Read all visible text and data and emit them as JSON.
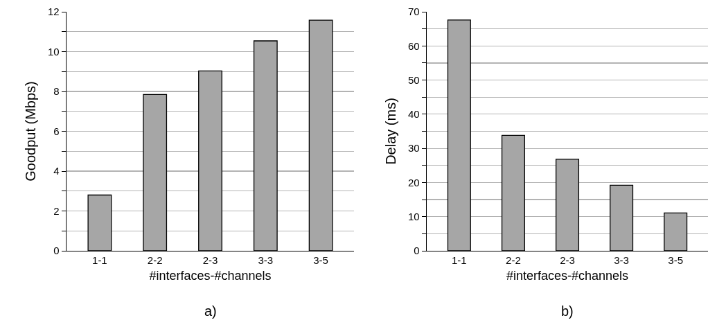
{
  "chart_data": [
    {
      "type": "bar",
      "categories": [
        "1-1",
        "2-2",
        "2-3",
        "3-3",
        "3-5"
      ],
      "values": [
        2.8,
        7.85,
        9.03,
        10.54,
        11.58
      ],
      "color": "#a6a6a6",
      "xlabel": "#interfaces-#channels",
      "ylabel": "Goodput (Mbps)",
      "ylim": [
        0,
        12
      ],
      "yticks": [
        0,
        {
          "value": 1,
          "label": null
        },
        2,
        {
          "value": 3,
          "label": null
        },
        4,
        {
          "value": 5,
          "label": null
        },
        6,
        {
          "value": 7,
          "label": null
        },
        8,
        {
          "value": 9,
          "label": null
        },
        10,
        {
          "value": 11,
          "label": null
        },
        12
      ],
      "grid": "y",
      "annotations": [
        "a)"
      ]
    },
    {
      "type": "bar",
      "categories": [
        "1-1",
        "2-2",
        "2-3",
        "3-3",
        "3-5"
      ],
      "values": [
        67.6,
        33.8,
        26.8,
        19.2,
        11.1
      ],
      "color": "#a6a6a6",
      "xlabel": "#interfaces-#channels",
      "ylabel": "Delay (ms)",
      "ylim": [
        0,
        70
      ],
      "yticks": [
        0,
        {
          "value": 5,
          "label": null
        },
        10,
        {
          "value": 15,
          "label": null
        },
        20,
        {
          "value": 25,
          "label": null
        },
        30,
        {
          "value": 35,
          "label": null
        },
        40,
        {
          "value": 45,
          "label": null
        },
        50,
        {
          "value": 55,
          "label": null
        },
        60,
        {
          "value": 65,
          "label": null
        },
        70
      ],
      "grid": "y",
      "annotations": [
        "b)"
      ]
    }
  ]
}
